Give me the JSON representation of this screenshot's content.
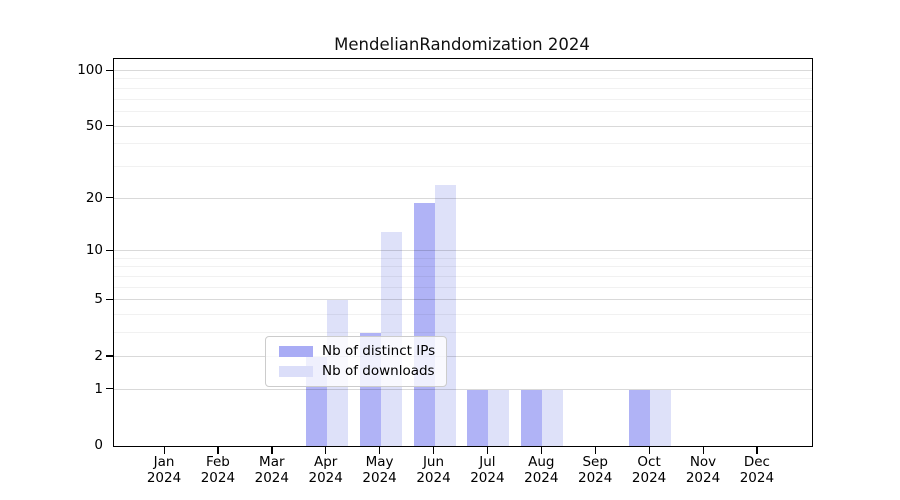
{
  "figure": {
    "title": "MendelianRandomization 2024"
  },
  "chart_data": {
    "type": "bar",
    "title": "MendelianRandomization 2024",
    "categories": [
      "Jan",
      "Feb",
      "Mar",
      "Apr",
      "May",
      "Jun",
      "Jul",
      "Aug",
      "Sep",
      "Oct",
      "Nov",
      "Dec"
    ],
    "x_tick_year": "2024",
    "series": [
      {
        "name": "Nb of distinct IPs",
        "color": "#a9acf5",
        "values": [
          0,
          0,
          0,
          2,
          3,
          19,
          1,
          1,
          0,
          1,
          0,
          0
        ]
      },
      {
        "name": "Nb of downloads",
        "color": "#dbdef9",
        "values": [
          0,
          0,
          0,
          5,
          13,
          24,
          1,
          1,
          0,
          1,
          0,
          0
        ]
      }
    ],
    "yscale": "log1p",
    "yticks": [
      0,
      1,
      2,
      5,
      10,
      20,
      50,
      100
    ],
    "minor_gridlines": [
      3,
      4,
      6,
      7,
      8,
      9,
      30,
      40,
      60,
      70,
      80,
      90
    ],
    "ylim": [
      0,
      100
    ],
    "xlabel": "",
    "ylabel": "",
    "grid": true,
    "legend_position": "lower center"
  },
  "legend": {
    "items": [
      {
        "label": "Nb of distinct IPs",
        "color": "#a9acf5"
      },
      {
        "label": "Nb of downloads",
        "color": "#dbdef9"
      }
    ]
  },
  "colors": {
    "ips_bar": "#a9acf5",
    "downloads_bar": "#dbdef9",
    "major_grid": "#d9d9d9",
    "minor_grid": "#f1f1f1",
    "axis": "#000000",
    "background": "#ffffff"
  }
}
